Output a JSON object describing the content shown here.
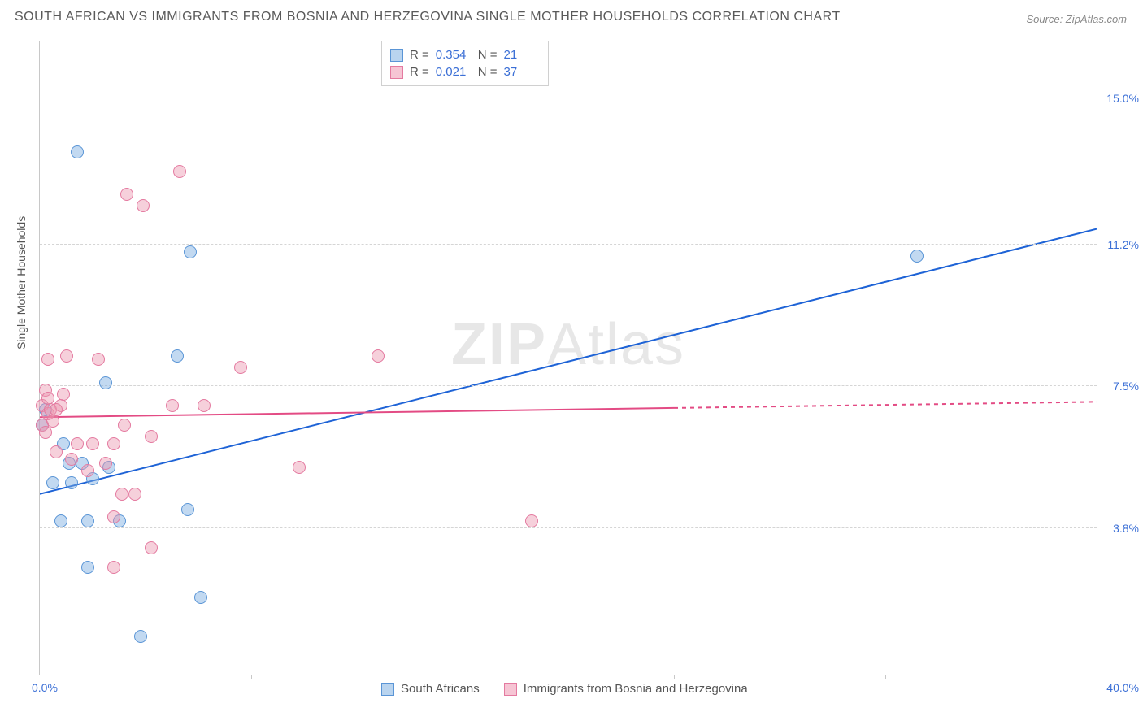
{
  "title": "SOUTH AFRICAN VS IMMIGRANTS FROM BOSNIA AND HERZEGOVINA SINGLE MOTHER HOUSEHOLDS CORRELATION CHART",
  "source": "Source: ZipAtlas.com",
  "y_axis_label": "Single Mother Households",
  "watermark_a": "ZIP",
  "watermark_b": "Atlas",
  "chart": {
    "type": "scatter",
    "xlim": [
      0,
      40
    ],
    "ylim": [
      0,
      16.5
    ],
    "x_min_label": "0.0%",
    "x_max_label": "40.0%",
    "y_ticks": [
      {
        "value": 3.8,
        "label": "3.8%"
      },
      {
        "value": 7.5,
        "label": "7.5%"
      },
      {
        "value": 11.2,
        "label": "11.2%"
      },
      {
        "value": 15.0,
        "label": "15.0%"
      }
    ],
    "x_tick_positions": [
      8,
      16,
      24,
      32,
      40
    ],
    "marker_radius": 8,
    "background_color": "#ffffff",
    "grid_color": "#d5d5d5",
    "axis_color": "#c8c8c8",
    "series": [
      {
        "name": "South Africans",
        "color_fill": "rgba(120,170,225,0.45)",
        "color_border": "#5a95d6",
        "legend_swatch_fill": "#b9d4ef",
        "legend_swatch_border": "#5a95d6",
        "R": "0.354",
        "N": "21",
        "trend": {
          "x1": 0,
          "y1": 4.7,
          "x2": 40,
          "y2": 11.6,
          "color": "#1e63d6",
          "width": 2,
          "dash": "none",
          "dash_from_x": null
        },
        "points": [
          [
            1.4,
            13.6
          ],
          [
            2.5,
            7.6
          ],
          [
            0.5,
            5.0
          ],
          [
            1.2,
            5.0
          ],
          [
            2.0,
            5.1
          ],
          [
            1.1,
            5.5
          ],
          [
            1.6,
            5.5
          ],
          [
            2.6,
            5.4
          ],
          [
            0.8,
            4.0
          ],
          [
            1.8,
            4.0
          ],
          [
            3.0,
            4.0
          ],
          [
            5.6,
            4.3
          ],
          [
            1.8,
            2.8
          ],
          [
            6.1,
            2.0
          ],
          [
            3.8,
            1.0
          ],
          [
            5.7,
            11.0
          ],
          [
            5.2,
            8.3
          ],
          [
            0.1,
            6.5
          ],
          [
            33.2,
            10.9
          ],
          [
            0.2,
            6.9
          ],
          [
            0.9,
            6.0
          ]
        ]
      },
      {
        "name": "Immigrants from Bosnia and Herzegovina",
        "color_fill": "rgba(235,150,175,0.45)",
        "color_border": "#e47aa0",
        "legend_swatch_fill": "#f6c5d4",
        "legend_swatch_border": "#e47aa0",
        "R": "0.021",
        "N": "37",
        "trend": {
          "x1": 0,
          "y1": 6.7,
          "x2": 40,
          "y2": 7.1,
          "color": "#e34b84",
          "width": 2,
          "dash": "none",
          "dash_from_x": 24
        },
        "points": [
          [
            0.1,
            7.0
          ],
          [
            0.2,
            7.4
          ],
          [
            0.3,
            6.8
          ],
          [
            0.1,
            6.5
          ],
          [
            0.3,
            7.2
          ],
          [
            0.2,
            6.3
          ],
          [
            0.4,
            6.9
          ],
          [
            0.8,
            7.0
          ],
          [
            0.9,
            7.3
          ],
          [
            0.3,
            8.2
          ],
          [
            3.3,
            12.5
          ],
          [
            3.9,
            12.2
          ],
          [
            5.3,
            13.1
          ],
          [
            7.6,
            8.0
          ],
          [
            5.0,
            7.0
          ],
          [
            6.2,
            7.0
          ],
          [
            4.2,
            6.2
          ],
          [
            3.2,
            6.5
          ],
          [
            1.4,
            6.0
          ],
          [
            2.0,
            6.0
          ],
          [
            2.8,
            6.0
          ],
          [
            2.2,
            8.2
          ],
          [
            1.0,
            8.3
          ],
          [
            2.5,
            5.5
          ],
          [
            3.1,
            4.7
          ],
          [
            3.6,
            4.7
          ],
          [
            2.8,
            4.1
          ],
          [
            4.2,
            3.3
          ],
          [
            2.8,
            2.8
          ],
          [
            9.8,
            5.4
          ],
          [
            12.8,
            8.3
          ],
          [
            18.6,
            4.0
          ],
          [
            0.6,
            5.8
          ],
          [
            1.2,
            5.6
          ],
          [
            1.8,
            5.3
          ],
          [
            0.5,
            6.6
          ],
          [
            0.6,
            6.9
          ]
        ]
      }
    ]
  },
  "stats_labels": {
    "R": "R =",
    "N": "N ="
  },
  "bottom_legend": [
    {
      "label": "South Africans"
    },
    {
      "label": "Immigrants from Bosnia and Herzegovina"
    }
  ]
}
